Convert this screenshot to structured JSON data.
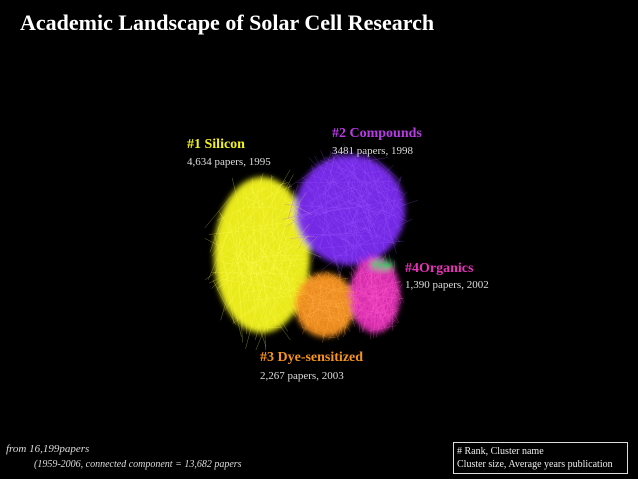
{
  "title": "Academic Landscape of Solar Cell Research",
  "clusters": [
    {
      "name": "#1 Silicon",
      "info": "4,634 papers, 1995",
      "color": "#f2f21a"
    },
    {
      "name": "#2 Compounds",
      "info": "3481 papers, 1998",
      "color": "#b83be6"
    },
    {
      "name": "#3 Dye-sensitized",
      "info": "2,267 papers, 2003",
      "color": "#f7931e"
    },
    {
      "name": "#4Organics",
      "info": "1,390 papers, 2002",
      "color": "#e633b5"
    }
  ],
  "footer": {
    "source": "from 16,199papers",
    "detail": "(1959-2006, connected component = 13,682 papers"
  },
  "legend": {
    "line1": "# Rank,  Cluster name",
    "line2": "Cluster size, Average years publication"
  }
}
